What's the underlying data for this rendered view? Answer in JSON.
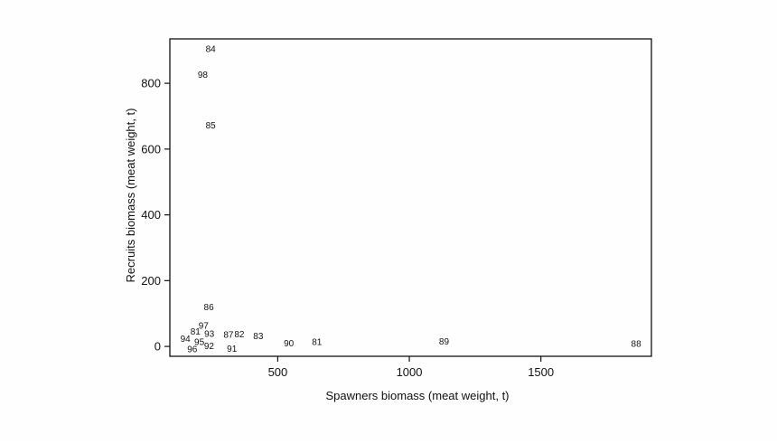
{
  "chart_data": {
    "type": "scatter",
    "title": "",
    "xlabel": "Spawners biomass (meat weight, t)",
    "ylabel": "Recruits biomass (meat weight, t)",
    "xlim": [
      90,
      1920
    ],
    "ylim": [
      -30,
      935
    ],
    "xticks": [
      500,
      1000,
      1500
    ],
    "yticks": [
      0,
      200,
      400,
      600,
      800
    ],
    "grid": false,
    "marker": "year-label",
    "points": [
      {
        "label": "84",
        "x": 245,
        "y": 905
      },
      {
        "label": "98",
        "x": 215,
        "y": 827
      },
      {
        "label": "85",
        "x": 245,
        "y": 673
      },
      {
        "label": "86",
        "x": 238,
        "y": 120
      },
      {
        "label": "97",
        "x": 218,
        "y": 64
      },
      {
        "label": "81",
        "x": 187,
        "y": 45
      },
      {
        "label": "93",
        "x": 240,
        "y": 39
      },
      {
        "label": "87",
        "x": 313,
        "y": 36
      },
      {
        "label": "82",
        "x": 354,
        "y": 37
      },
      {
        "label": "83",
        "x": 426,
        "y": 32
      },
      {
        "label": "94",
        "x": 149,
        "y": 24
      },
      {
        "label": "95",
        "x": 202,
        "y": 14
      },
      {
        "label": "92",
        "x": 239,
        "y": 2
      },
      {
        "label": "90",
        "x": 542,
        "y": 10
      },
      {
        "label": "81",
        "x": 649,
        "y": 14
      },
      {
        "label": "89",
        "x": 1132,
        "y": 16
      },
      {
        "label": "88",
        "x": 1862,
        "y": 8
      },
      {
        "label": "96",
        "x": 175,
        "y": -8
      },
      {
        "label": "91",
        "x": 326,
        "y": -7
      }
    ]
  }
}
